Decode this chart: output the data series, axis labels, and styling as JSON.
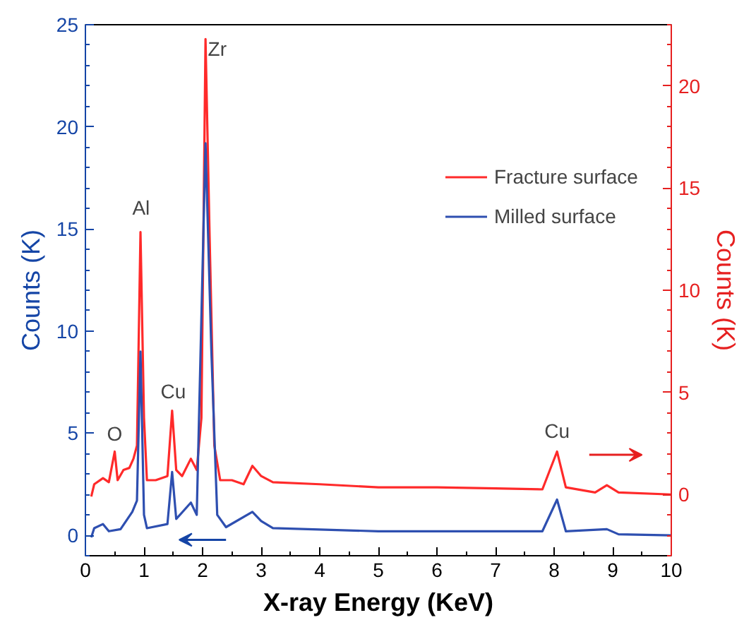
{
  "chart_data": {
    "type": "line",
    "xlabel": "X-ray Energy (KeV)",
    "ylabel": "Counts (K)",
    "y2label": "Counts (K)",
    "xlim": [
      0,
      10
    ],
    "xticks": [
      0,
      1,
      2,
      3,
      4,
      5,
      6,
      7,
      8,
      9,
      10
    ],
    "ylim": [
      -1,
      25
    ],
    "yticks": [
      0,
      5,
      10,
      15,
      20,
      25
    ],
    "y2lim": [
      -3,
      23
    ],
    "y2ticks": [
      0,
      5,
      10,
      15,
      20
    ],
    "legend": "top right",
    "grid": false,
    "series": [
      {
        "name": "Fracture surface",
        "color": "#ff2a2a",
        "axis": "y2",
        "x": [
          0.1,
          0.15,
          0.3,
          0.4,
          0.5,
          0.55,
          0.65,
          0.75,
          0.82,
          0.88,
          0.94,
          1.0,
          1.05,
          1.2,
          1.4,
          1.48,
          1.55,
          1.65,
          1.8,
          1.9,
          1.98,
          2.05,
          2.12,
          2.2,
          2.3,
          2.5,
          2.7,
          2.85,
          3.0,
          3.2,
          4,
          5,
          6,
          7,
          7.8,
          8.05,
          8.2,
          8.7,
          8.9,
          9.1,
          10
        ],
        "values": [
          -0.1,
          0.5,
          0.8,
          0.6,
          2.1,
          0.7,
          1.2,
          1.3,
          1.75,
          2.4,
          12.85,
          3.75,
          0.7,
          0.7,
          0.9,
          4.1,
          1.2,
          0.9,
          1.75,
          1.2,
          3.75,
          22.3,
          12.6,
          2.4,
          0.7,
          0.7,
          0.5,
          1.4,
          0.9,
          0.6,
          0.5,
          0.35,
          0.35,
          0.3,
          0.25,
          2.1,
          0.35,
          0.1,
          0.45,
          0.1,
          0.0
        ]
      },
      {
        "name": "Milled surface",
        "color": "#2e4fb0",
        "x": [
          0.1,
          0.15,
          0.3,
          0.4,
          0.6,
          0.8,
          0.88,
          0.94,
          1.0,
          1.05,
          1.4,
          1.48,
          1.55,
          1.8,
          1.9,
          2.05,
          2.15,
          2.25,
          2.4,
          2.85,
          3.0,
          3.2,
          5,
          7.8,
          8.05,
          8.2,
          8.9,
          9.1,
          10
        ],
        "values": [
          -0.1,
          0.35,
          0.55,
          0.2,
          0.3,
          1.15,
          1.7,
          9.0,
          1.0,
          0.35,
          0.55,
          3.1,
          0.8,
          1.6,
          1.0,
          19.2,
          9.0,
          1.0,
          0.4,
          1.15,
          0.7,
          0.35,
          0.2,
          0.2,
          1.75,
          0.2,
          0.3,
          0.05,
          0.0
        ]
      }
    ],
    "annotations": [
      "O",
      "Al",
      "Cu",
      "Zr",
      "Cu"
    ]
  }
}
